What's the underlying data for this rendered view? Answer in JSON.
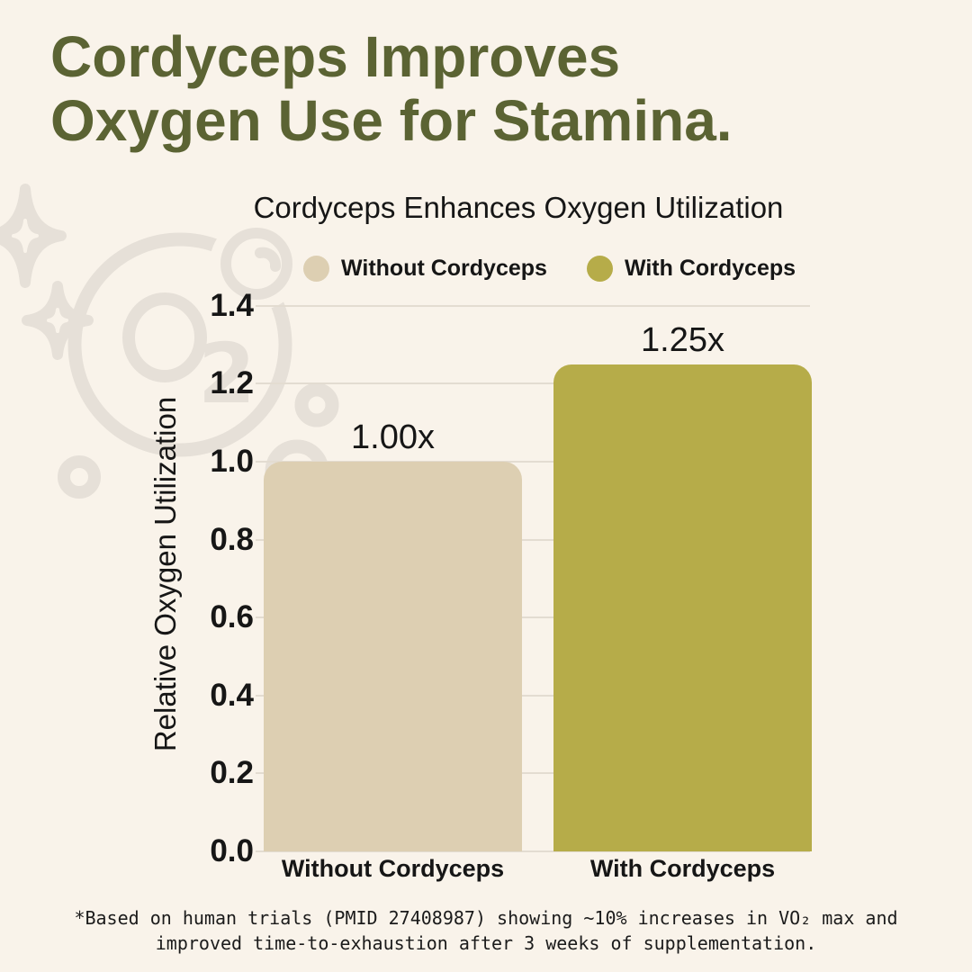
{
  "header": {
    "title_line1": "Cordyceps Improves",
    "title_line2": "Oxygen Use for Stamina."
  },
  "chart_data": {
    "type": "bar",
    "title": "Cordyceps Enhances Oxygen Utilization",
    "ylabel": "Relative Oxygen Utilization",
    "xlabel": "",
    "categories": [
      "Without Cordyceps",
      "With Cordyceps"
    ],
    "values": [
      1.0,
      1.25
    ],
    "bar_labels": [
      "1.00x",
      "1.25x"
    ],
    "bar_colors": [
      "#ddcfb2",
      "#b6ac49"
    ],
    "legend": [
      {
        "label": "Without Cordyceps",
        "color": "#ddcfb2"
      },
      {
        "label": "With Cordyceps",
        "color": "#b6ac49"
      }
    ],
    "legend_position": "top",
    "yticks": [
      "0.0",
      "0.2",
      "0.4",
      "0.6",
      "0.8",
      "1.0",
      "1.2",
      "1.4"
    ],
    "ylim": [
      0,
      1.4
    ],
    "grid": true
  },
  "footnote": {
    "line1": "*Based on human trials (PMID 27408987) showing ~10% increases in VO₂ max and",
    "line2": "improved time-to-exhaustion after 3 weeks of supplementation."
  },
  "colors": {
    "background": "#f9f3ea",
    "title_green": "#5b6333",
    "bar_beige": "#ddcfb2",
    "bar_olive": "#b6ac49",
    "watermark": "#e6e0d8",
    "gridline": "#e3dcd1",
    "text": "#161616"
  },
  "icons": {
    "watermark_motif": "o2-bubbles-and-sparkles"
  }
}
